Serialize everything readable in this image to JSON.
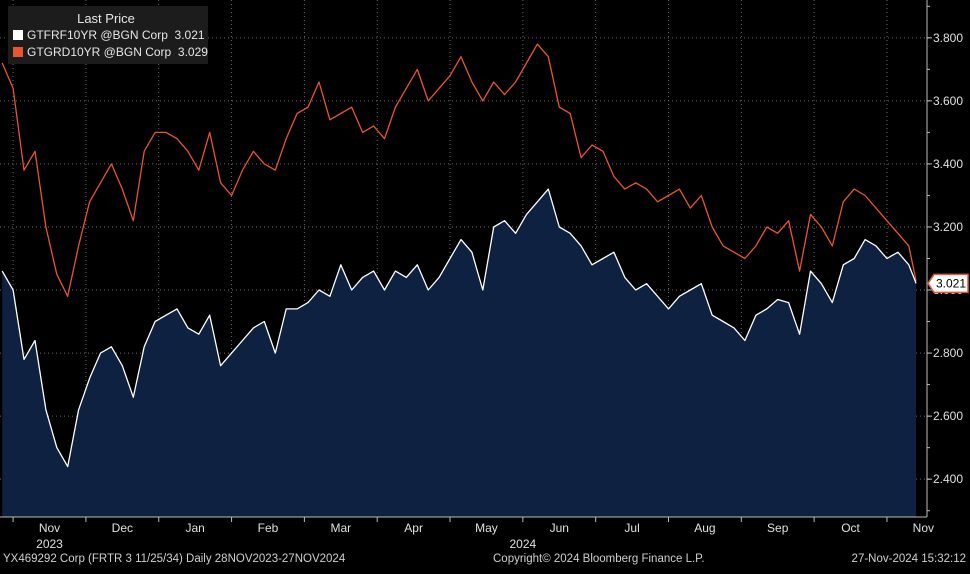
{
  "chart_data": {
    "type": "line",
    "legend": {
      "title": "Last Price",
      "placement": "top-left",
      "entries": [
        {
          "label": "GTFRF10YR @BGN Corp",
          "value": "3.021",
          "color": "#ffffff"
        },
        {
          "label": "GTGRD10YR @BGN Corp",
          "value": "3.029",
          "color": "#e8552e"
        }
      ]
    },
    "ylim": [
      2.28,
      3.92
    ],
    "yticks": [
      2.4,
      2.6,
      2.8,
      3.0,
      3.2,
      3.4,
      3.6,
      3.8
    ],
    "ytick_labels": [
      "2.400",
      "2.600",
      "2.800",
      "3.000",
      "3.200",
      "3.400",
      "3.600",
      "3.800"
    ],
    "xticks": [
      {
        "label": "Nov",
        "t": 0.0
      },
      {
        "label": "Dec",
        "t": 1.0
      },
      {
        "label": "Jan",
        "t": 2.0
      },
      {
        "label": "Feb",
        "t": 3.0
      },
      {
        "label": "Mar",
        "t": 4.0
      },
      {
        "label": "Apr",
        "t": 5.0
      },
      {
        "label": "May",
        "t": 6.0
      },
      {
        "label": "Jun",
        "t": 7.0
      },
      {
        "label": "Jul",
        "t": 8.0
      },
      {
        "label": "Aug",
        "t": 9.0
      },
      {
        "label": "Sep",
        "t": 10.0
      },
      {
        "label": "Oct",
        "t": 11.0
      },
      {
        "label": "Nov",
        "t": 12.0
      }
    ],
    "year_labels": [
      {
        "label": "2023",
        "t": 0.5
      },
      {
        "label": "2024",
        "t": 7.0
      }
    ],
    "t_range": [
      -0.18,
      12.55
    ],
    "gridlines": true,
    "last_value_tag": "3.021",
    "series": [
      {
        "name": "GTFRF10YR @BGN Corp",
        "color": "#ffffff",
        "fill": "#0e2140",
        "t": [
          -0.15,
          0.0,
          0.15,
          0.3,
          0.45,
          0.6,
          0.75,
          0.9,
          1.05,
          1.2,
          1.35,
          1.5,
          1.65,
          1.8,
          1.95,
          2.1,
          2.25,
          2.4,
          2.55,
          2.7,
          2.85,
          3.0,
          3.15,
          3.3,
          3.45,
          3.6,
          3.75,
          3.9,
          4.05,
          4.2,
          4.35,
          4.5,
          4.65,
          4.8,
          4.95,
          5.1,
          5.25,
          5.4,
          5.55,
          5.7,
          5.85,
          6.0,
          6.15,
          6.3,
          6.45,
          6.6,
          6.75,
          6.9,
          7.05,
          7.2,
          7.35,
          7.5,
          7.65,
          7.8,
          7.95,
          8.1,
          8.25,
          8.4,
          8.55,
          8.7,
          8.85,
          9.0,
          9.15,
          9.3,
          9.45,
          9.6,
          9.75,
          9.9,
          10.05,
          10.2,
          10.35,
          10.5,
          10.65,
          10.8,
          10.95,
          11.1,
          11.25,
          11.4,
          11.55,
          11.7,
          11.85,
          12.0,
          12.15,
          12.3,
          12.4
        ],
        "values": [
          3.06,
          3.0,
          2.78,
          2.84,
          2.62,
          2.5,
          2.44,
          2.62,
          2.72,
          2.8,
          2.82,
          2.76,
          2.66,
          2.82,
          2.9,
          2.92,
          2.94,
          2.88,
          2.86,
          2.92,
          2.76,
          2.8,
          2.84,
          2.88,
          2.9,
          2.8,
          2.94,
          2.94,
          2.96,
          3.0,
          2.98,
          3.08,
          3.0,
          3.04,
          3.06,
          3.0,
          3.06,
          3.04,
          3.08,
          3.0,
          3.04,
          3.1,
          3.16,
          3.12,
          3.0,
          3.2,
          3.22,
          3.18,
          3.24,
          3.28,
          3.32,
          3.2,
          3.18,
          3.14,
          3.08,
          3.1,
          3.12,
          3.04,
          3.0,
          3.02,
          2.98,
          2.94,
          2.98,
          3.0,
          3.02,
          2.92,
          2.9,
          2.88,
          2.84,
          2.92,
          2.94,
          2.97,
          2.96,
          2.86,
          3.06,
          3.02,
          2.96,
          3.08,
          3.1,
          3.16,
          3.14,
          3.1,
          3.12,
          3.08,
          3.021
        ]
      },
      {
        "name": "GTGRD10YR @BGN Corp",
        "color": "#e8552e",
        "fill": "none",
        "t": [
          -0.15,
          0.0,
          0.15,
          0.3,
          0.45,
          0.6,
          0.75,
          0.9,
          1.05,
          1.2,
          1.35,
          1.5,
          1.65,
          1.8,
          1.95,
          2.1,
          2.25,
          2.4,
          2.55,
          2.7,
          2.85,
          3.0,
          3.15,
          3.3,
          3.45,
          3.6,
          3.75,
          3.9,
          4.05,
          4.2,
          4.35,
          4.5,
          4.65,
          4.8,
          4.95,
          5.1,
          5.25,
          5.4,
          5.55,
          5.7,
          5.85,
          6.0,
          6.15,
          6.3,
          6.45,
          6.6,
          6.75,
          6.9,
          7.05,
          7.2,
          7.35,
          7.5,
          7.65,
          7.8,
          7.95,
          8.1,
          8.25,
          8.4,
          8.55,
          8.7,
          8.85,
          9.0,
          9.15,
          9.3,
          9.45,
          9.6,
          9.75,
          9.9,
          10.05,
          10.2,
          10.35,
          10.5,
          10.65,
          10.8,
          10.95,
          11.1,
          11.25,
          11.4,
          11.55,
          11.7,
          11.85,
          12.0,
          12.15,
          12.3,
          12.4
        ],
        "values": [
          3.72,
          3.64,
          3.38,
          3.44,
          3.2,
          3.05,
          2.98,
          3.14,
          3.28,
          3.34,
          3.4,
          3.32,
          3.22,
          3.44,
          3.5,
          3.5,
          3.48,
          3.44,
          3.38,
          3.5,
          3.34,
          3.3,
          3.38,
          3.44,
          3.4,
          3.38,
          3.48,
          3.56,
          3.58,
          3.66,
          3.54,
          3.56,
          3.58,
          3.5,
          3.52,
          3.48,
          3.58,
          3.64,
          3.7,
          3.6,
          3.64,
          3.68,
          3.74,
          3.66,
          3.6,
          3.66,
          3.62,
          3.66,
          3.72,
          3.78,
          3.74,
          3.58,
          3.56,
          3.42,
          3.46,
          3.44,
          3.36,
          3.32,
          3.34,
          3.32,
          3.28,
          3.3,
          3.32,
          3.26,
          3.3,
          3.2,
          3.14,
          3.12,
          3.1,
          3.14,
          3.2,
          3.18,
          3.22,
          3.06,
          3.24,
          3.2,
          3.14,
          3.28,
          3.32,
          3.3,
          3.26,
          3.22,
          3.18,
          3.14,
          3.029
        ]
      }
    ]
  },
  "footer": {
    "left": "YX469292 Corp (FRTR 3 11/25/34)  Daily 28NOV2023-27NOV2024",
    "center": "Copyright© 2024 Bloomberg Finance L.P.",
    "right": "27-Nov-2024 15:32:12"
  }
}
